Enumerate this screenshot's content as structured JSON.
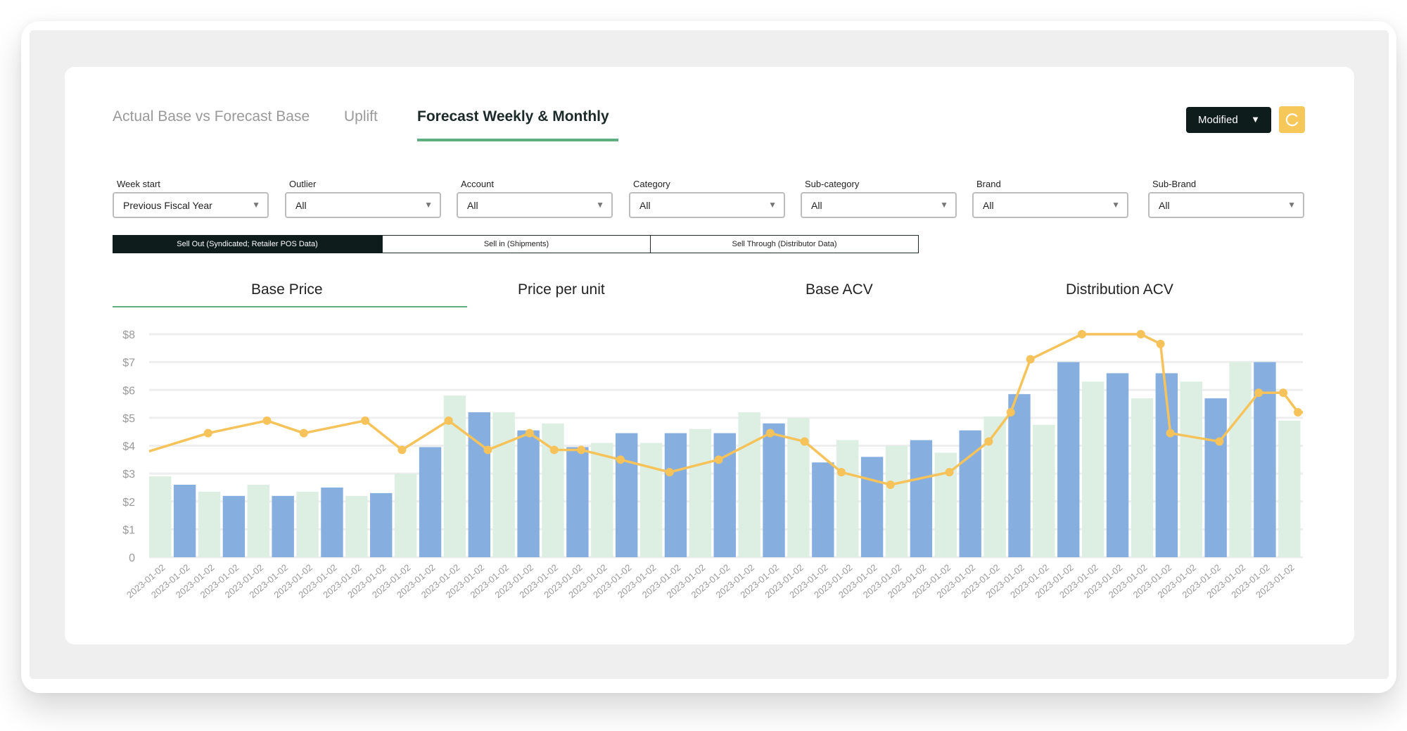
{
  "tabs": [
    {
      "label": "Actual Base vs Forecast Base",
      "active": false
    },
    {
      "label": "Uplift",
      "active": false
    },
    {
      "label": "Forecast Weekly & Monthly",
      "active": true
    }
  ],
  "toolbar": {
    "scenario_label": "Modified",
    "scenario_caret": "▼",
    "refresh_icon": "refresh-icon"
  },
  "filters": [
    {
      "label": "Week start",
      "value": "Previous Fiscal Year"
    },
    {
      "label": "Outlier",
      "value": "All"
    },
    {
      "label": "Account",
      "value": "All"
    },
    {
      "label": "Category",
      "value": "All"
    },
    {
      "label": "Sub-category",
      "value": "All"
    },
    {
      "label": "Brand",
      "value": "All"
    },
    {
      "label": "Sub-Brand",
      "value": "All"
    }
  ],
  "data_sources": [
    {
      "label": "Sell Out (Syndicated; Retailer POS Data)",
      "active": true
    },
    {
      "label": "Sell in (Shipments)",
      "active": false
    },
    {
      "label": "Sell Through (Distributor Data)",
      "active": false
    }
  ],
  "metric_tabs": [
    {
      "label": "Base Price",
      "active": true
    },
    {
      "label": "Price per unit",
      "active": false
    },
    {
      "label": "Base ACV",
      "active": false
    },
    {
      "label": "Distribution ACV",
      "active": false
    }
  ],
  "colors": {
    "bar_blue": "#86afe0",
    "bar_green": "#ddeee3",
    "line": "#f6c35b",
    "accent_green": "#5fae7f",
    "dark": "#0f1c1c"
  },
  "chart_data": {
    "type": "bar",
    "ylim": [
      0,
      8
    ],
    "ytick_labels": [
      "0",
      "$1",
      "$2",
      "$3",
      "$4",
      "$5",
      "$6",
      "$7",
      "$8"
    ],
    "categories": [
      "2023-01-02",
      "2023-01-02",
      "2023-01-02",
      "2023-01-02",
      "2023-01-02",
      "2023-01-02",
      "2023-01-02",
      "2023-01-02",
      "2023-01-02",
      "2023-01-02",
      "2023-01-02",
      "2023-01-02",
      "2023-01-02",
      "2023-01-02",
      "2023-01-02",
      "2023-01-02",
      "2023-01-02",
      "2023-01-02",
      "2023-01-02",
      "2023-01-02",
      "2023-01-02",
      "2023-01-02",
      "2023-01-02",
      "2023-01-02",
      "2023-01-02",
      "2023-01-02",
      "2023-01-02",
      "2023-01-02",
      "2023-01-02",
      "2023-01-02",
      "2023-01-02",
      "2023-01-02",
      "2023-01-02",
      "2023-01-02",
      "2023-01-02",
      "2023-01-02",
      "2023-01-02",
      "2023-01-02",
      "2023-01-02",
      "2023-01-02",
      "2023-01-02",
      "2023-01-02",
      "2023-01-02",
      "2023-01-02",
      "2023-01-02",
      "2023-01-02",
      "2023-01-02"
    ],
    "bar_series": [
      {
        "values": [
          2.9,
          2.6,
          2.35,
          2.2,
          2.6,
          2.2,
          2.35,
          2.5,
          2.2,
          2.3,
          3.0,
          3.95,
          5.8,
          5.2,
          5.2,
          4.55,
          4.8,
          3.95,
          4.1,
          4.45,
          4.1,
          4.45,
          4.6,
          4.45,
          5.2,
          4.8,
          5.0,
          3.4,
          4.2,
          3.6,
          4.0,
          4.2,
          3.75,
          4.55,
          5.05,
          5.85,
          4.75,
          7.0,
          6.3,
          6.6,
          5.7,
          6.6,
          6.3,
          5.7,
          7.0,
          7.0,
          4.9
        ]
      }
    ],
    "bar_colors": [
      "green",
      "blue",
      "green",
      "blue",
      "green",
      "blue",
      "green",
      "blue",
      "green",
      "blue",
      "green",
      "blue",
      "green",
      "blue",
      "green",
      "blue",
      "green",
      "blue",
      "green",
      "blue",
      "green",
      "blue",
      "green",
      "blue",
      "green",
      "blue",
      "green",
      "blue",
      "green",
      "blue",
      "green",
      "blue",
      "green",
      "blue",
      "green",
      "blue",
      "green",
      "blue",
      "green",
      "blue",
      "green",
      "blue",
      "green",
      "blue",
      "green",
      "blue",
      "green"
    ],
    "line_series": [
      {
        "values": [
          3.8,
          4.45,
          4.9,
          4.45,
          4.9,
          3.85,
          4.9,
          3.85,
          4.45,
          3.85,
          3.85,
          3.5,
          3.05,
          3.5,
          4.45,
          4.15,
          3.05,
          2.6,
          3.05,
          4.15,
          5.2,
          7.1,
          8.0,
          8.0,
          7.65,
          4.45,
          4.15,
          5.9,
          5.9,
          5.2,
          5.2
        ]
      }
    ],
    "line_x_index": [
      0,
      2.4,
      4.8,
      6.3,
      8.8,
      10.3,
      12.2,
      13.8,
      15.5,
      16.5,
      17.6,
      19.2,
      21.2,
      23.2,
      25.3,
      26.7,
      28.2,
      30.2,
      32.6,
      34.2,
      35.1,
      35.9,
      38.0,
      40.4,
      41.2,
      41.6,
      43.6,
      45.2,
      46.2,
      46.8,
      47.0
    ]
  }
}
